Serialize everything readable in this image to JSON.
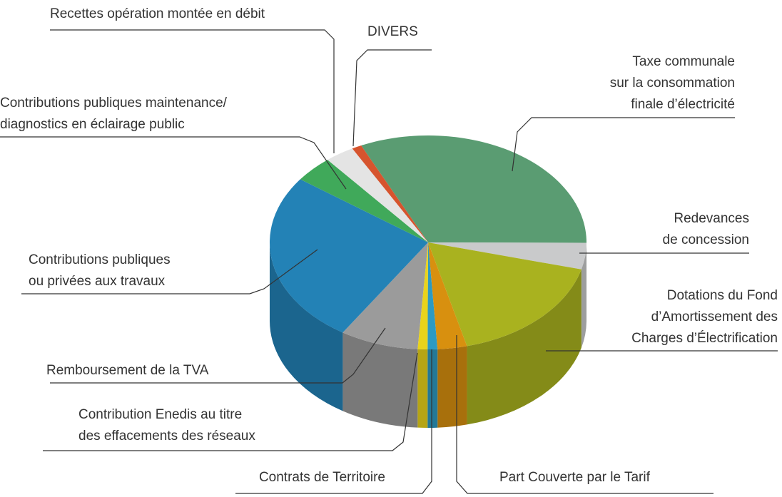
{
  "chart_data": {
    "type": "pie3d",
    "categories": [
      "Taxe communale\nsur la consommation\nfinale d’électricité",
      "Redevances\nde concession",
      "Dotations du Fond\nd’Amortissement des\nCharges d’Électrification",
      "Part Couverte par le Tarif",
      "Contrats de Territoire",
      "Contribution Enedis au titre\ndes effacements des réseaux",
      "Remboursement de la TVA",
      "Contributions publiques\nou privées aux travaux",
      "Contributions publiques maintenance/\ndiagnostics en éclairage public",
      "Recettes opération montée en débit",
      "DIVERS"
    ],
    "values": [
      32,
      4,
      17,
      3,
      1,
      1,
      8,
      26,
      4,
      3,
      1
    ],
    "colors": [
      "#5a9c72",
      "#c9cacb",
      "#a9b21f",
      "#d8900f",
      "#2d9ac2",
      "#e9d31b",
      "#9b9b9b",
      "#2382b6",
      "#40a95a",
      "#e4e4e4",
      "#d6542e"
    ]
  }
}
